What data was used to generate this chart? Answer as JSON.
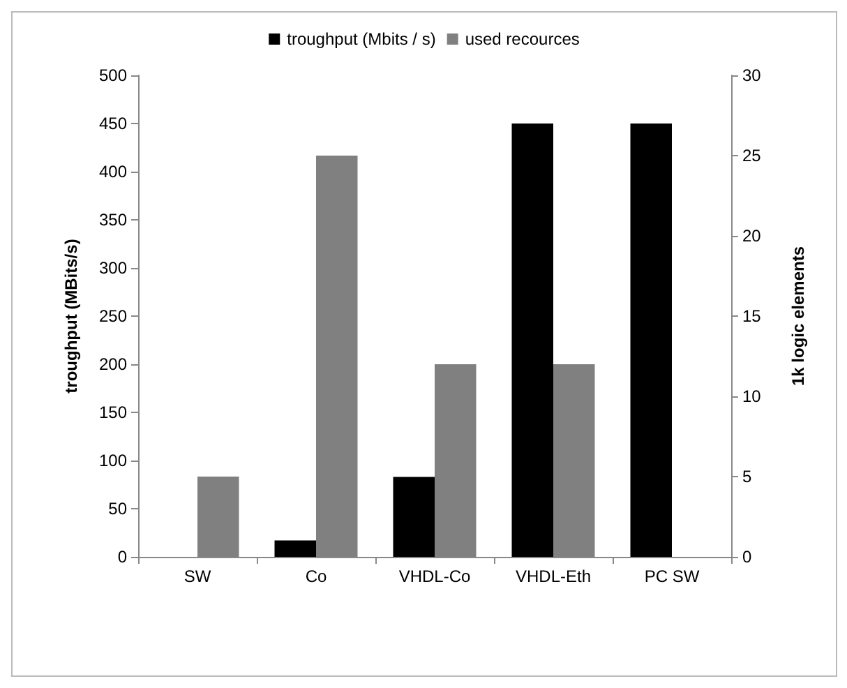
{
  "chart_data": {
    "type": "bar",
    "categories": [
      "SW",
      "Co",
      "VHDL-Co",
      "VHDL-Eth",
      "PC SW"
    ],
    "series": [
      {
        "name": "troughput (Mbits / s)",
        "color": "#000000",
        "values": [
          null,
          17,
          83,
          450,
          450
        ]
      },
      {
        "name": "used recources",
        "color": "#808080",
        "axis": "y2",
        "values": [
          5,
          25,
          12,
          12,
          null
        ]
      }
    ],
    "ylabel": "troughput (MBits/s)",
    "y2label": "1k logic elements",
    "ylim": [
      0,
      500
    ],
    "yticks": [
      0,
      50,
      100,
      150,
      200,
      250,
      300,
      350,
      400,
      450,
      500
    ],
    "y2lim": [
      0,
      30
    ],
    "y2ticks": [
      0,
      5,
      10,
      15,
      20,
      25,
      30
    ],
    "grid": false,
    "legend": "top"
  }
}
